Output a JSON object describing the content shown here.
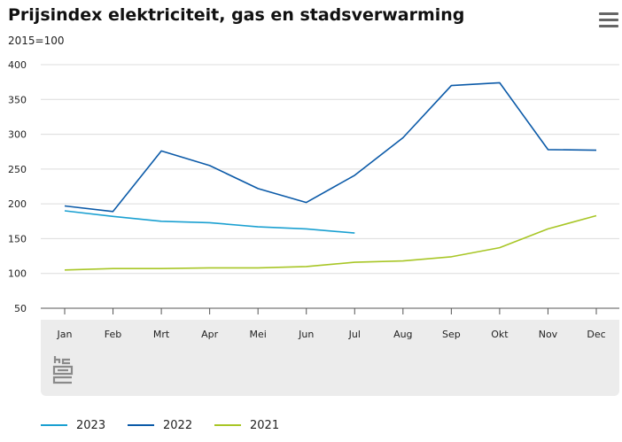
{
  "title": "Prijsindex elektriciteit, gas en stadsverwarming",
  "menu": {
    "icon": "hamburger-menu-icon"
  },
  "logo": {
    "icon": "cbs-logo-icon"
  },
  "chart_data": {
    "type": "line",
    "title": "Prijsindex elektriciteit, gas en stadsverwarming",
    "subtitle": "2015=100",
    "xlabel": "",
    "ylabel": "",
    "categories": [
      "Jan",
      "Feb",
      "Mrt",
      "Apr",
      "Mei",
      "Jun",
      "Jul",
      "Aug",
      "Sep",
      "Okt",
      "Nov",
      "Dec"
    ],
    "ylim": [
      50,
      400
    ],
    "yticks": [
      400,
      350,
      300,
      250,
      200,
      150,
      100,
      50
    ],
    "grid": true,
    "legend_position": "bottom-left",
    "series": [
      {
        "name": "2023",
        "color": "#1aa0d1",
        "values": [
          190,
          182,
          175,
          173,
          167,
          164,
          158,
          null,
          null,
          null,
          null,
          null
        ]
      },
      {
        "name": "2022",
        "color": "#0b5aa8",
        "values": [
          197,
          189,
          276,
          255,
          222,
          202,
          241,
          295,
          370,
          374,
          278,
          277
        ]
      },
      {
        "name": "2021",
        "color": "#a8c626",
        "values": [
          105,
          107,
          107,
          108,
          108,
          110,
          116,
          118,
          124,
          137,
          164,
          183
        ]
      }
    ]
  }
}
